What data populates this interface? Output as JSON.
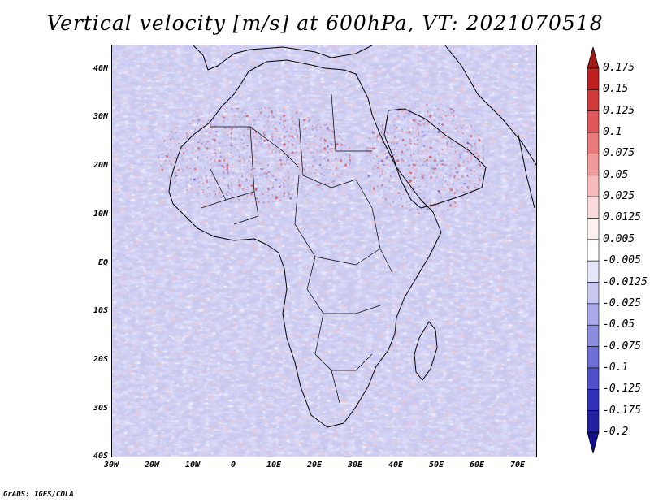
{
  "title": "Vertical velocity [m/s] at 600hPa, VT: 2021070518",
  "credit": "GrADS: IGES/COLA",
  "map": {
    "projection": "latlon",
    "lon_range": [
      -30,
      75
    ],
    "lat_range": [
      -40,
      45
    ],
    "lat_ticks": [
      "40N",
      "30N",
      "20N",
      "10N",
      "EQ",
      "10S",
      "20S",
      "30S",
      "40S"
    ],
    "lon_ticks": [
      "30W",
      "20W",
      "10W",
      "0",
      "10E",
      "20E",
      "30E",
      "40E",
      "50E",
      "60E",
      "70E"
    ],
    "field_base_color": "#c9c9f0",
    "coastline_color": "#000000"
  },
  "colorbar": {
    "orientation": "vertical",
    "arrows": "both-ends",
    "labels": [
      "0.175",
      "0.15",
      "0.125",
      "0.1",
      "0.075",
      "0.05",
      "0.025",
      "0.0125",
      "0.005",
      "-0.005",
      "-0.0125",
      "-0.025",
      "-0.05",
      "-0.075",
      "-0.1",
      "-0.125",
      "-0.175",
      "-0.2"
    ],
    "colors": [
      "#a01818",
      "#c02020",
      "#d23a3a",
      "#e05858",
      "#ea7a7a",
      "#f09a9a",
      "#f6bcbc",
      "#fadada",
      "#fff0f0",
      "#ffffff",
      "#e6e6fa",
      "#c8c8f2",
      "#aaaaea",
      "#8c8ce0",
      "#6e6ed6",
      "#5050cc",
      "#3030b8",
      "#2020a0",
      "#101088"
    ]
  }
}
